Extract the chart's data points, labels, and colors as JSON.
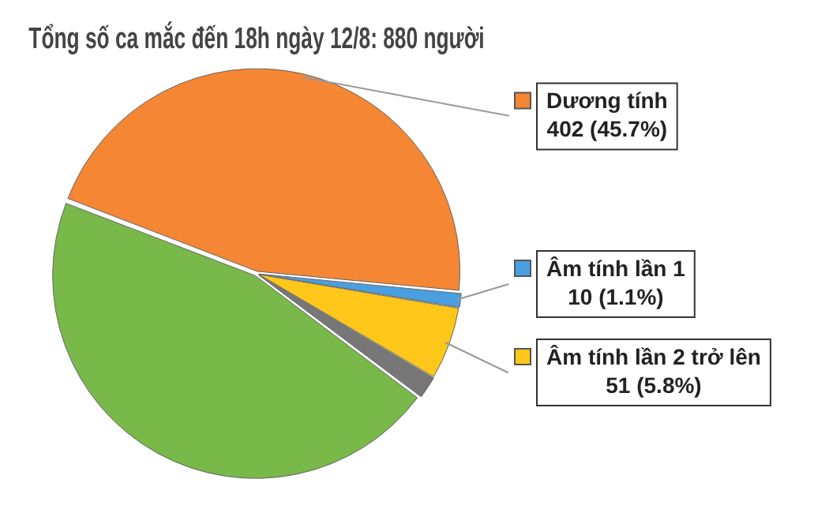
{
  "chart_data": {
    "type": "pie",
    "title": "Tổng số ca mắc đến 18h ngày 12/8: 880 người",
    "categories": [
      "Dương tính",
      "Âm tính lần 1",
      "Âm tính lần 2 trở lên",
      null,
      null
    ],
    "values": [
      402,
      10,
      51,
      16,
      401
    ],
    "colors": [
      "#f58634",
      "#4a9fe0",
      "#ffc71a",
      "#777777",
      "#78b94a"
    ],
    "value_labels": [
      "402 (45.7%)",
      "10 (1.1%)",
      "51 (5.8%)",
      null,
      null
    ],
    "legend": "right"
  }
}
